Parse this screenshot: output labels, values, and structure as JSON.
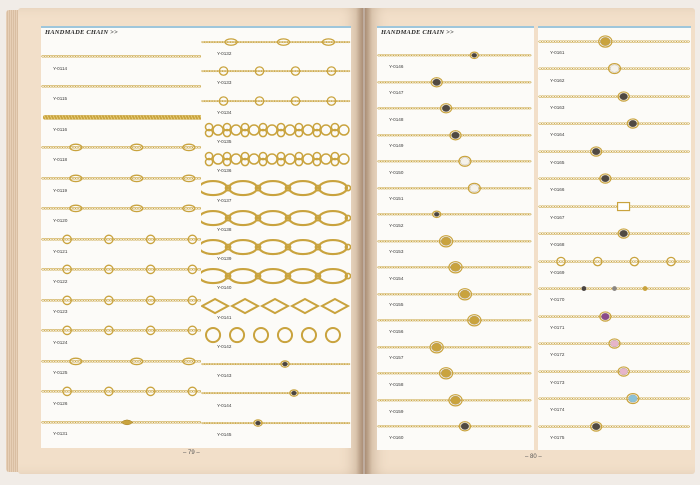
{
  "section_title": "HANDMADE CHAIN >>",
  "page_numbers": {
    "left": "– 79 –",
    "right": "– 80 –"
  },
  "colors": {
    "page": "#f2dfc9",
    "column": "#fcfbf8",
    "accent_rule": "#9ec6db",
    "gold": "#c9a33e",
    "gold_highlight": "#ead483",
    "silver": "#b8b6b0",
    "dark": "#4a4440"
  },
  "columns": [
    {
      "id": "left-a",
      "header": true,
      "items": [
        {
          "code": "Y-0114",
          "style": "fine"
        },
        {
          "code": "Y-0115",
          "style": "fine"
        },
        {
          "code": "Y-0116",
          "style": "rope"
        },
        {
          "code": "Y-0118",
          "style": "fine-ovals"
        },
        {
          "code": "Y-0119",
          "style": "fine-ovals"
        },
        {
          "code": "Y-0120",
          "style": "fine-ovals"
        },
        {
          "code": "Y-0121",
          "style": "fine-rings"
        },
        {
          "code": "Y-0122",
          "style": "fine-rings"
        },
        {
          "code": "Y-0123",
          "style": "fine-rings"
        },
        {
          "code": "Y-0124",
          "style": "fine-rings"
        },
        {
          "code": "Y-0125",
          "style": "fine-ovals"
        },
        {
          "code": "Y-0126",
          "style": "fine-rings"
        },
        {
          "code": "Y-0131",
          "style": "drop"
        }
      ]
    },
    {
      "id": "left-b",
      "header": false,
      "items": [
        {
          "code": "Y-0132",
          "style": "fine-ovals"
        },
        {
          "code": "Y-0133",
          "style": "fine-rings"
        },
        {
          "code": "Y-0134",
          "style": "fine-rings"
        },
        {
          "code": "Y-0135",
          "style": "eights"
        },
        {
          "code": "Y-0136",
          "style": "eights"
        },
        {
          "code": "Y-0137",
          "style": "big-ovals"
        },
        {
          "code": "Y-0138",
          "style": "big-ovals"
        },
        {
          "code": "Y-0139",
          "style": "big-ovals"
        },
        {
          "code": "Y-0140",
          "style": "big-ovals"
        },
        {
          "code": "Y-0141",
          "style": "diamonds"
        },
        {
          "code": "Y-0142",
          "style": "big-rings"
        },
        {
          "code": "Y-0143",
          "style": "bead"
        },
        {
          "code": "Y-0144",
          "style": "bead"
        },
        {
          "code": "Y-0145",
          "style": "bead"
        }
      ]
    },
    {
      "id": "right-a",
      "header": true,
      "items": [
        {
          "code": "Y-0146",
          "style": "bead"
        },
        {
          "code": "Y-0147",
          "style": "stone-dark"
        },
        {
          "code": "Y-0148",
          "style": "stone-dark"
        },
        {
          "code": "Y-0149",
          "style": "stone-dark"
        },
        {
          "code": "Y-0150",
          "style": "pearl"
        },
        {
          "code": "Y-0151",
          "style": "pearl"
        },
        {
          "code": "Y-0152",
          "style": "bead"
        },
        {
          "code": "Y-0153",
          "style": "medallion"
        },
        {
          "code": "Y-0154",
          "style": "medallion"
        },
        {
          "code": "Y-0155",
          "style": "medallion"
        },
        {
          "code": "Y-0156",
          "style": "medallion"
        },
        {
          "code": "Y-0157",
          "style": "medallion"
        },
        {
          "code": "Y-0158",
          "style": "medallion"
        },
        {
          "code": "Y-0159",
          "style": "medallion"
        },
        {
          "code": "Y-0160",
          "style": "stone-dark"
        }
      ]
    },
    {
      "id": "right-b",
      "header": false,
      "items": [
        {
          "code": "Y-0161",
          "style": "medallion"
        },
        {
          "code": "Y-0162",
          "style": "pearl"
        },
        {
          "code": "Y-0163",
          "style": "stone-dark"
        },
        {
          "code": "Y-0164",
          "style": "stone-dark"
        },
        {
          "code": "Y-0165",
          "style": "stone-dark"
        },
        {
          "code": "Y-0166",
          "style": "stone-dark"
        },
        {
          "code": "Y-0167",
          "style": "frame"
        },
        {
          "code": "Y-0168",
          "style": "stone-dark"
        },
        {
          "code": "Y-0169",
          "style": "fine-rings"
        },
        {
          "code": "Y-0170",
          "style": "dots"
        },
        {
          "code": "Y-0171",
          "style": "stone-purple"
        },
        {
          "code": "Y-0172",
          "style": "stone-pink"
        },
        {
          "code": "Y-0173",
          "style": "stone-pink"
        },
        {
          "code": "Y-0174",
          "style": "stone-blue"
        },
        {
          "code": "Y-0175",
          "style": "stone-dark"
        }
      ]
    }
  ]
}
